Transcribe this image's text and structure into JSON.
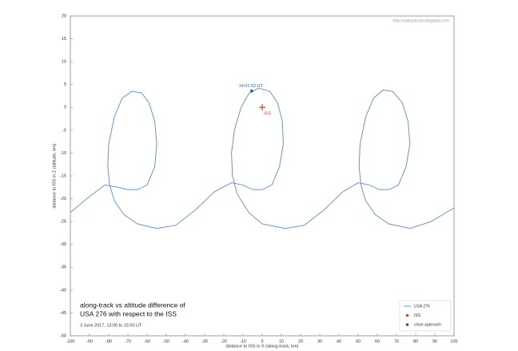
{
  "chart_data": {
    "type": "line",
    "watermark": "http://sattrackcam.blogspot.com",
    "title_lines": [
      "along-track vs altitude difference of",
      "USA 276 with respect to the ISS"
    ],
    "subtitle": "3 June 2017, 13:00 to 15:00 UT",
    "xlabel": "distance to ISS in X (along-track, km)",
    "ylabel": "distance to ISS in Z (altitude, km)",
    "xlim": [
      -100,
      100
    ],
    "ylim": [
      -50,
      20
    ],
    "xticks": [
      -100,
      -90,
      -80,
      -70,
      -60,
      -50,
      -40,
      -30,
      -20,
      -10,
      0,
      10,
      20,
      30,
      40,
      50,
      60,
      70,
      80,
      90,
      100
    ],
    "yticks": [
      -50,
      -45,
      -40,
      -35,
      -30,
      -25,
      -20,
      -15,
      -10,
      -5,
      0,
      5,
      10,
      15,
      20
    ],
    "legend": "lower right",
    "series": [
      {
        "name": "USA 276",
        "color": "#6a95cf",
        "type": "line",
        "x": [
          -100,
          -90,
          -82,
          -76,
          -70,
          -65,
          -60,
          -56,
          -55,
          -56,
          -59,
          -63,
          -68,
          -73,
          -77,
          -80,
          -80.5,
          -79.5,
          -77,
          -72,
          -65,
          -55,
          -45,
          -35,
          -25,
          -16,
          -10,
          -5,
          0,
          5,
          9,
          11,
          10.5,
          8,
          4,
          -2,
          -7,
          -11,
          -14.5,
          -16,
          -15.5,
          -13,
          -7,
          0,
          12,
          22,
          32,
          42,
          50,
          56,
          61,
          66,
          71,
          75,
          77,
          76,
          73,
          68,
          63,
          58,
          54,
          51,
          50.5,
          51.5,
          54,
          59,
          66,
          77,
          88,
          100
        ],
        "values": [
          -23,
          -19.5,
          -17,
          -17.4,
          -18,
          -18,
          -17,
          -13,
          -8,
          -3,
          1,
          3.2,
          3.5,
          2,
          -2,
          -8,
          -13,
          -17,
          -20.5,
          -23.5,
          -25.5,
          -26.5,
          -25.8,
          -22.5,
          -18.5,
          -16.5,
          -17,
          -18,
          -18,
          -17,
          -13,
          -8,
          -3,
          1,
          3.5,
          4.2,
          3,
          0,
          -5,
          -10,
          -15,
          -19,
          -23,
          -25.5,
          -26.5,
          -25.8,
          -22.5,
          -18.5,
          -16.5,
          -17,
          -18,
          -18,
          -17,
          -13,
          -8,
          -3,
          1,
          3.5,
          3.8,
          2,
          -2,
          -8,
          -13,
          -17,
          -20.5,
          -23.5,
          -25.5,
          -26.5,
          -25,
          -22
        ]
      },
      {
        "name": "ISS",
        "color": "#e0442a",
        "type": "cross",
        "x": [
          0
        ],
        "values": [
          0
        ],
        "labels": [
          "ISS"
        ]
      },
      {
        "name": "close approach",
        "color": "#1f5fa8",
        "type": "dot",
        "x": [
          -5.5
        ],
        "values": [
          3.6
        ],
        "labels": [
          "14:01:52 UT"
        ]
      }
    ]
  }
}
